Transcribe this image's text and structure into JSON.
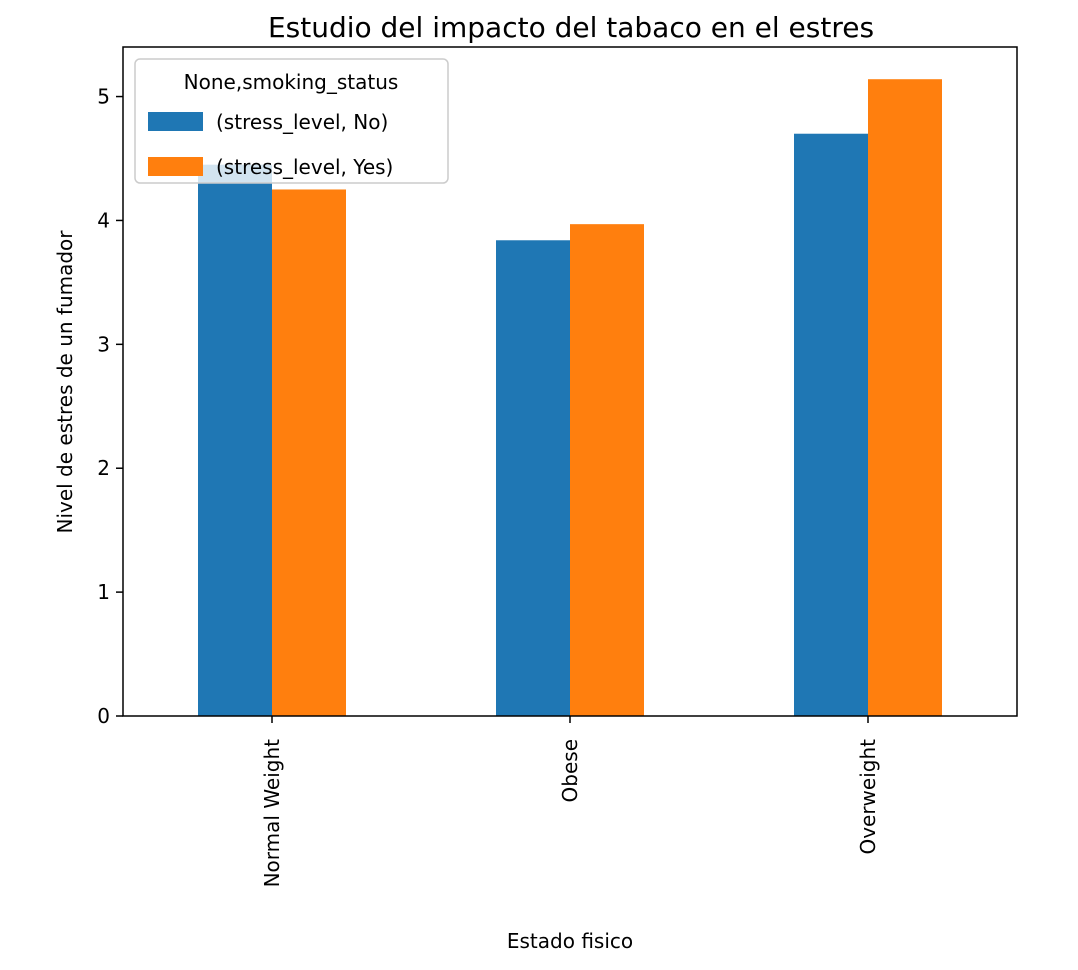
{
  "chart_data": {
    "type": "bar",
    "title": "Estudio del impacto del tabaco en el estres",
    "xlabel": "Estado fisico",
    "ylabel": "Nivel de estres de un fumador",
    "categories": [
      "Normal Weight",
      "Obese",
      "Overweight"
    ],
    "series": [
      {
        "name": "(stress_level, No)",
        "values": [
          4.45,
          3.84,
          4.7
        ],
        "color": "#1f77b4"
      },
      {
        "name": "(stress_level, Yes)",
        "values": [
          4.25,
          3.97,
          5.14
        ],
        "color": "#ff7f0e"
      }
    ],
    "ylim": [
      0,
      5.4
    ],
    "yticks": [
      0,
      1,
      2,
      3,
      4,
      5
    ],
    "legend": {
      "title": "None,smoking_status",
      "placement": "top-left"
    },
    "grid": false
  }
}
